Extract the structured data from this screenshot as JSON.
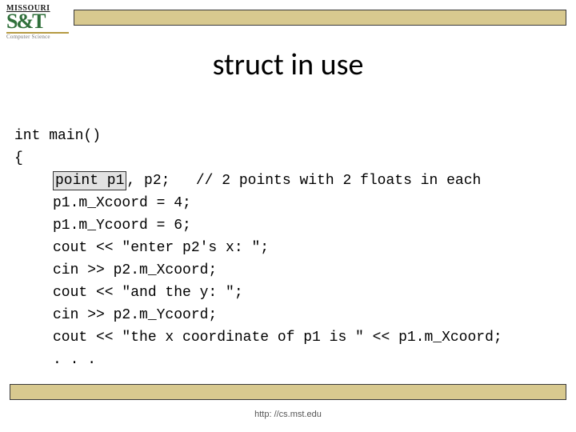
{
  "logo": {
    "top": "MISSOURI",
    "mid": "S&T",
    "bot": "Computer Science"
  },
  "topbar_color": "#d8c98f",
  "title": "struct in use",
  "code": {
    "l1": "int main()",
    "l2": "{",
    "hl": "point p1",
    "l3_rest": ", p2;   // 2 points with 2 floats in each",
    "l4": "p1.m_Xcoord = 4;",
    "l5": "p1.m_Ycoord = 6;",
    "l6": "cout << \"enter p2's x: \";",
    "l7": "cin >> p2.m_Xcoord;",
    "l8": "cout << \"and the y: \";",
    "l9": "cin >> p2.m_Ycoord;",
    "l10": "cout << \"the x coordinate of p1 is \" << p1.m_Xcoord;",
    "l11": ". . ."
  },
  "footer": "http: //cs.mst.edu"
}
